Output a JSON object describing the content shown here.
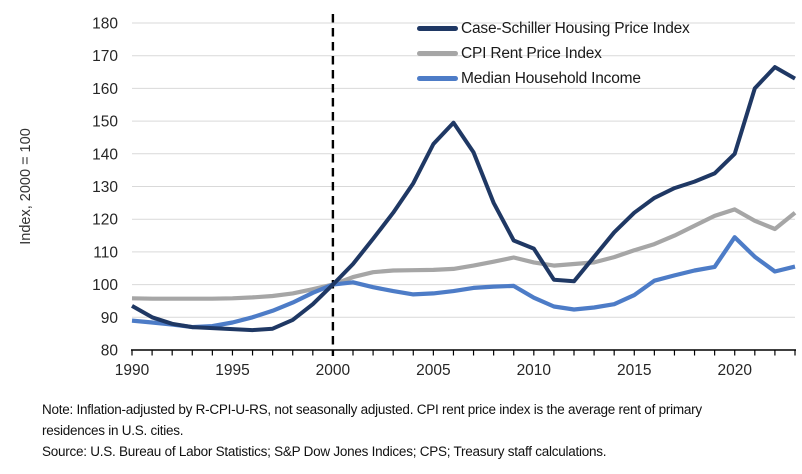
{
  "chart_data": {
    "type": "line",
    "title": "",
    "y_axis": {
      "label": "Index, 2000 = 100",
      "min": 80,
      "max": 180,
      "tick_step": 10,
      "tick_labels": [
        180,
        170,
        160,
        150,
        140,
        130,
        120,
        110,
        100,
        90,
        80
      ]
    },
    "x_axis": {
      "min": 1990,
      "max": 2023,
      "labeled_ticks": [
        1990,
        1995,
        2000,
        2005,
        2010,
        2015,
        2020
      ],
      "minor_tick_every_year": true
    },
    "x": [
      1990,
      1991,
      1992,
      1993,
      1994,
      1995,
      1996,
      1997,
      1998,
      1999,
      2000,
      2001,
      2002,
      2003,
      2004,
      2005,
      2006,
      2007,
      2008,
      2009,
      2010,
      2011,
      2012,
      2013,
      2014,
      2015,
      2016,
      2017,
      2018,
      2019,
      2020,
      2021,
      2022,
      2023
    ],
    "series": [
      {
        "name": "Case-Schiller Housing Price Index",
        "color": "#1F3864",
        "stroke_width": 4,
        "values": [
          93.5,
          90,
          88,
          87,
          86.7,
          86.4,
          86.1,
          86.5,
          89.2,
          94,
          100,
          106.3,
          114,
          122,
          131,
          143,
          149.5,
          140.5,
          125,
          113.5,
          111,
          101.5,
          101,
          108.5,
          116,
          122,
          126.5,
          129.5,
          131.5,
          134,
          140,
          160,
          166.5,
          163
        ]
      },
      {
        "name": "CPI Rent Price Index",
        "color": "#A6A6A6",
        "stroke_width": 4.2,
        "values": [
          95.8,
          95.7,
          95.7,
          95.7,
          95.7,
          95.8,
          96.1,
          96.5,
          97.3,
          98.6,
          100,
          102.3,
          103.8,
          104.3,
          104.4,
          104.5,
          104.8,
          105.8,
          107,
          108.3,
          106.8,
          105.8,
          106.3,
          106.8,
          108.4,
          110.5,
          112.4,
          115,
          118,
          121,
          123,
          119.5,
          117,
          122
        ]
      },
      {
        "name": "Median Household Income",
        "color": "#4D7CC7",
        "stroke_width": 4.2,
        "values": [
          89,
          88.4,
          87.8,
          87,
          87.3,
          88.4,
          90,
          92,
          94.5,
          97.5,
          100,
          100.7,
          99.2,
          98,
          97,
          97.3,
          98,
          99,
          99.4,
          99.6,
          96,
          93.3,
          92.4,
          93,
          94,
          96.8,
          101.2,
          102.8,
          104.3,
          105.4,
          114.5,
          108.5,
          104,
          105.5
        ]
      }
    ],
    "reference_line": {
      "x_year": 2000,
      "style": "dashed",
      "color": "#000000"
    },
    "grid": {
      "horizontal": true,
      "color": "#D9D9D9"
    },
    "legend_position": "top-right"
  },
  "notes": {
    "note": "Note: Inflation-adjusted by R-CPI-U-RS, not seasonally adjusted. CPI rent price index is the average rent of primary residences in U.S. cities.",
    "source": "Source: U.S. Bureau of Labor Statistics; S&P Dow Jones Indices; CPS; Treasury staff calculations."
  },
  "colors": {
    "axis_text": "#262626",
    "axis_line": "#000000",
    "background": "#FFFFFF"
  }
}
